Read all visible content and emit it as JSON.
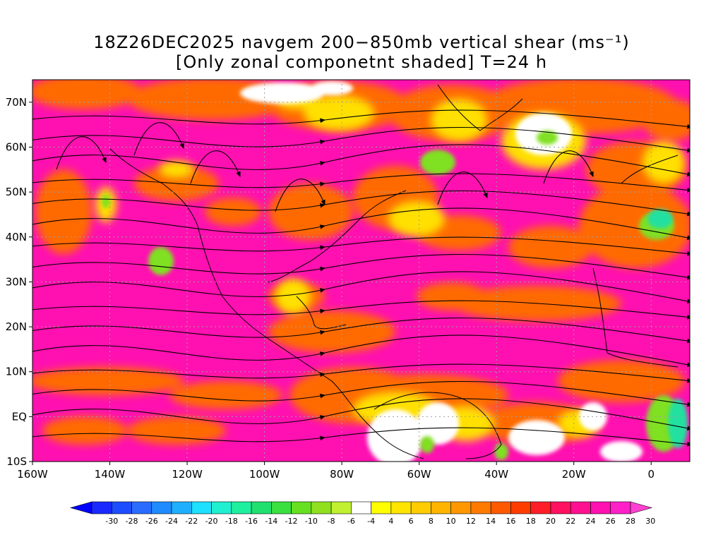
{
  "title": {
    "line1": "18Z26DEC2025 navgem 200−850mb vertical shear (ms⁻¹)",
    "line2": "[Only zonal componetnt shaded] T=24 h"
  },
  "axes": {
    "lat_labels": [
      "70N",
      "60N",
      "50N",
      "40N",
      "30N",
      "20N",
      "10N",
      "EQ",
      "10S"
    ],
    "lat_values": [
      70,
      60,
      50,
      40,
      30,
      20,
      10,
      0,
      -10
    ],
    "lon_labels": [
      "160W",
      "140W",
      "120W",
      "100W",
      "80W",
      "60W",
      "40W",
      "20W",
      "0"
    ],
    "lon_values": [
      -160,
      -140,
      -120,
      -100,
      -80,
      -60,
      -40,
      -20,
      0
    ],
    "lon_range": [
      -160,
      10
    ],
    "lat_range": [
      -10,
      75
    ]
  },
  "colorbar": {
    "labels": [
      "-30",
      "-28",
      "-26",
      "-24",
      "-22",
      "-20",
      "-18",
      "-16",
      "-14",
      "-12",
      "-10",
      "-8",
      "-6",
      "-4",
      "4",
      "6",
      "8",
      "10",
      "12",
      "14",
      "16",
      "18",
      "20",
      "22",
      "24",
      "26",
      "28",
      "30"
    ],
    "colors": [
      "#1a2aff",
      "#1e4cff",
      "#2a6cff",
      "#1e8cff",
      "#1eb0ff",
      "#1ee0ff",
      "#1ef0d0",
      "#1ef0a0",
      "#20e070",
      "#3ae040",
      "#66e020",
      "#90e020",
      "#c0f030",
      "#ffffff",
      "#ffff00",
      "#ffe400",
      "#ffcc00",
      "#ffb400",
      "#ff9800",
      "#ff7a00",
      "#ff5a00",
      "#ff3c00",
      "#ff1e28",
      "#ff1060",
      "#ff1090",
      "#ff10b0",
      "#ff20c8"
    ],
    "left_arrow_color": "#0000ff",
    "right_arrow_color": "#ff40d0"
  },
  "colors": {
    "background_shade": "#ff10b0",
    "orange": "#ff6a00",
    "yellow": "#ffe000",
    "green": "#80e020",
    "cyan": "#20e0a0",
    "grid": "#a0a0a0",
    "contour": "#a040c0"
  }
}
